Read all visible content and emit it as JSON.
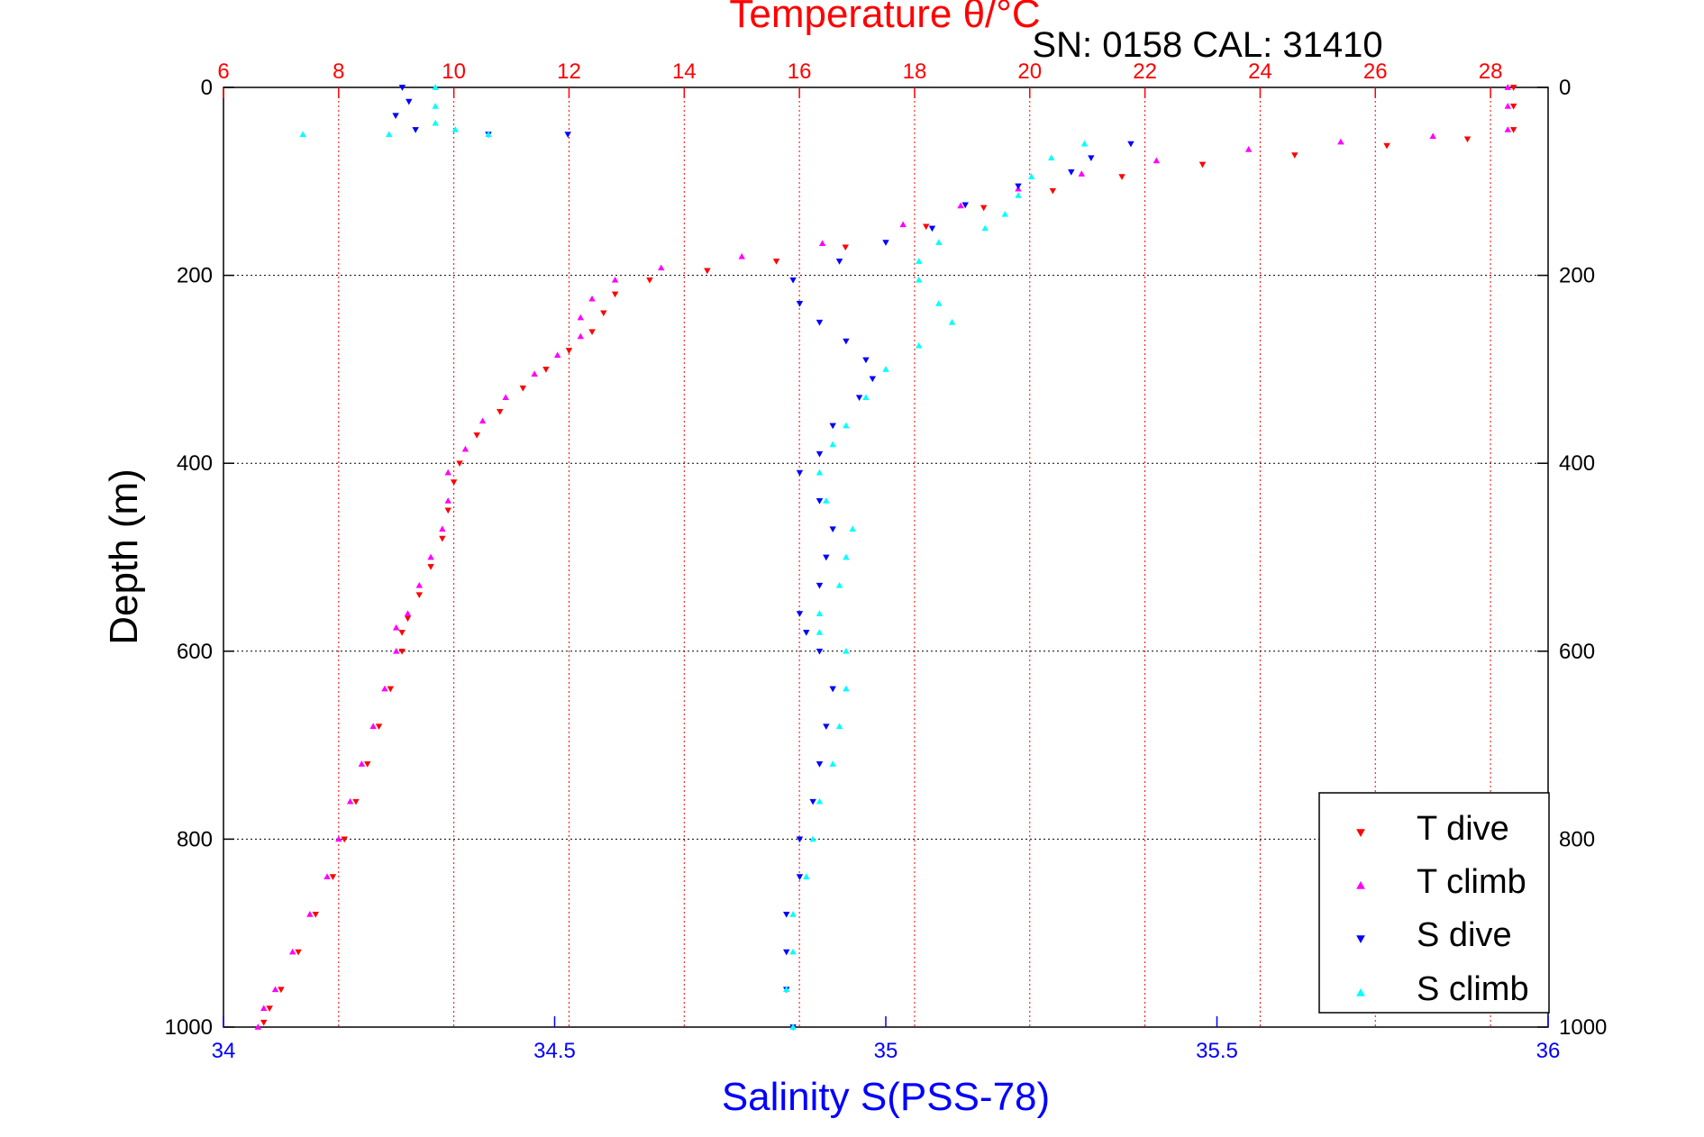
{
  "chart_data": {
    "type": "scatter",
    "title": "Temperature θ/°C",
    "subtitle": "SN: 0158  CAL: 31410",
    "xlabel": "Salinity S(PSS-78)",
    "ylabel": "Depth (m)",
    "x_top": {
      "min": 6,
      "max": 29,
      "ticks": [
        6,
        8,
        10,
        12,
        14,
        16,
        18,
        20,
        22,
        24,
        26,
        28
      ],
      "color": "#ff0000"
    },
    "x_bottom": {
      "min": 34,
      "max": 36,
      "ticks": [
        34,
        34.5,
        35,
        35.5,
        36
      ],
      "tick_labels": [
        "34",
        "34.5",
        "35",
        "35.5",
        "36"
      ],
      "color": "#0000ff"
    },
    "y": {
      "min": 0,
      "max": 1000,
      "inverted": true,
      "ticks": [
        0,
        200,
        400,
        600,
        800,
        1000
      ]
    },
    "grid": true,
    "legend": {
      "position": "bottom-right"
    },
    "series": [
      {
        "name": "T dive",
        "axis": "top",
        "color": "#ff0000",
        "marker": "triangle-down",
        "points": [
          [
            28.4,
            0
          ],
          [
            28.4,
            20
          ],
          [
            28.4,
            45
          ],
          [
            27.6,
            55
          ],
          [
            26.2,
            62
          ],
          [
            24.6,
            72
          ],
          [
            23.0,
            82
          ],
          [
            21.6,
            95
          ],
          [
            20.4,
            110
          ],
          [
            19.2,
            128
          ],
          [
            18.2,
            148
          ],
          [
            16.8,
            170
          ],
          [
            15.6,
            185
          ],
          [
            14.4,
            195
          ],
          [
            13.4,
            205
          ],
          [
            12.8,
            220
          ],
          [
            12.6,
            240
          ],
          [
            12.4,
            260
          ],
          [
            12.0,
            280
          ],
          [
            11.6,
            300
          ],
          [
            11.2,
            320
          ],
          [
            10.8,
            345
          ],
          [
            10.4,
            370
          ],
          [
            10.1,
            400
          ],
          [
            10.0,
            420
          ],
          [
            9.9,
            450
          ],
          [
            9.8,
            480
          ],
          [
            9.6,
            510
          ],
          [
            9.4,
            540
          ],
          [
            9.2,
            565
          ],
          [
            9.1,
            580
          ],
          [
            9.1,
            600
          ],
          [
            8.9,
            640
          ],
          [
            8.7,
            680
          ],
          [
            8.5,
            720
          ],
          [
            8.3,
            760
          ],
          [
            8.1,
            800
          ],
          [
            7.9,
            840
          ],
          [
            7.6,
            880
          ],
          [
            7.3,
            920
          ],
          [
            7.0,
            960
          ],
          [
            6.8,
            980
          ],
          [
            6.7,
            995
          ]
        ]
      },
      {
        "name": "T climb",
        "axis": "top",
        "color": "#ff00ff",
        "marker": "triangle-up",
        "points": [
          [
            28.3,
            0
          ],
          [
            28.3,
            20
          ],
          [
            28.3,
            45
          ],
          [
            27.0,
            52
          ],
          [
            25.4,
            58
          ],
          [
            23.8,
            66
          ],
          [
            22.2,
            78
          ],
          [
            20.9,
            92
          ],
          [
            19.8,
            108
          ],
          [
            18.8,
            126
          ],
          [
            17.8,
            146
          ],
          [
            16.4,
            166
          ],
          [
            15.0,
            180
          ],
          [
            13.6,
            192
          ],
          [
            12.8,
            205
          ],
          [
            12.4,
            225
          ],
          [
            12.2,
            245
          ],
          [
            12.2,
            265
          ],
          [
            11.8,
            285
          ],
          [
            11.4,
            305
          ],
          [
            10.9,
            330
          ],
          [
            10.5,
            355
          ],
          [
            10.2,
            385
          ],
          [
            9.9,
            410
          ],
          [
            9.9,
            440
          ],
          [
            9.8,
            470
          ],
          [
            9.6,
            500
          ],
          [
            9.4,
            530
          ],
          [
            9.2,
            560
          ],
          [
            9.0,
            575
          ],
          [
            9.0,
            600
          ],
          [
            8.8,
            640
          ],
          [
            8.6,
            680
          ],
          [
            8.4,
            720
          ],
          [
            8.2,
            760
          ],
          [
            8.0,
            800
          ],
          [
            7.8,
            840
          ],
          [
            7.5,
            880
          ],
          [
            7.2,
            920
          ],
          [
            6.9,
            960
          ],
          [
            6.7,
            980
          ],
          [
            6.6,
            1000
          ]
        ]
      },
      {
        "name": "S dive",
        "axis": "bottom",
        "color": "#0000ff",
        "marker": "triangle-down",
        "points": [
          [
            34.27,
            0
          ],
          [
            34.28,
            15
          ],
          [
            34.26,
            30
          ],
          [
            34.29,
            45
          ],
          [
            34.4,
            50
          ],
          [
            34.52,
            50
          ],
          [
            35.37,
            60
          ],
          [
            35.31,
            75
          ],
          [
            35.28,
            90
          ],
          [
            35.2,
            105
          ],
          [
            35.12,
            125
          ],
          [
            35.07,
            150
          ],
          [
            35.0,
            165
          ],
          [
            34.93,
            185
          ],
          [
            34.86,
            205
          ],
          [
            34.87,
            230
          ],
          [
            34.9,
            250
          ],
          [
            34.94,
            270
          ],
          [
            34.97,
            290
          ],
          [
            34.98,
            310
          ],
          [
            34.96,
            330
          ],
          [
            34.92,
            360
          ],
          [
            34.9,
            390
          ],
          [
            34.87,
            410
          ],
          [
            34.9,
            440
          ],
          [
            34.92,
            470
          ],
          [
            34.91,
            500
          ],
          [
            34.9,
            530
          ],
          [
            34.87,
            560
          ],
          [
            34.88,
            580
          ],
          [
            34.9,
            600
          ],
          [
            34.92,
            640
          ],
          [
            34.91,
            680
          ],
          [
            34.9,
            720
          ],
          [
            34.89,
            760
          ],
          [
            34.87,
            800
          ],
          [
            34.87,
            840
          ],
          [
            34.85,
            880
          ],
          [
            34.85,
            920
          ],
          [
            34.85,
            960
          ],
          [
            34.86,
            1000
          ]
        ]
      },
      {
        "name": "S climb",
        "axis": "bottom",
        "color": "#00ffff",
        "marker": "triangle-up",
        "points": [
          [
            34.32,
            0
          ],
          [
            34.32,
            20
          ],
          [
            34.32,
            38
          ],
          [
            34.35,
            45
          ],
          [
            34.12,
            50
          ],
          [
            34.25,
            50
          ],
          [
            34.4,
            50
          ],
          [
            35.3,
            60
          ],
          [
            35.25,
            75
          ],
          [
            35.22,
            95
          ],
          [
            35.2,
            115
          ],
          [
            35.18,
            135
          ],
          [
            35.15,
            150
          ],
          [
            35.08,
            165
          ],
          [
            35.05,
            185
          ],
          [
            35.05,
            205
          ],
          [
            35.08,
            230
          ],
          [
            35.1,
            250
          ],
          [
            35.05,
            275
          ],
          [
            35.0,
            300
          ],
          [
            34.97,
            330
          ],
          [
            34.94,
            360
          ],
          [
            34.92,
            380
          ],
          [
            34.9,
            410
          ],
          [
            34.91,
            440
          ],
          [
            34.95,
            470
          ],
          [
            34.94,
            500
          ],
          [
            34.93,
            530
          ],
          [
            34.9,
            560
          ],
          [
            34.9,
            580
          ],
          [
            34.94,
            600
          ],
          [
            34.94,
            640
          ],
          [
            34.93,
            680
          ],
          [
            34.92,
            720
          ],
          [
            34.9,
            760
          ],
          [
            34.89,
            800
          ],
          [
            34.88,
            840
          ],
          [
            34.86,
            880
          ],
          [
            34.86,
            920
          ],
          [
            34.85,
            960
          ],
          [
            34.86,
            1000
          ]
        ]
      }
    ]
  }
}
